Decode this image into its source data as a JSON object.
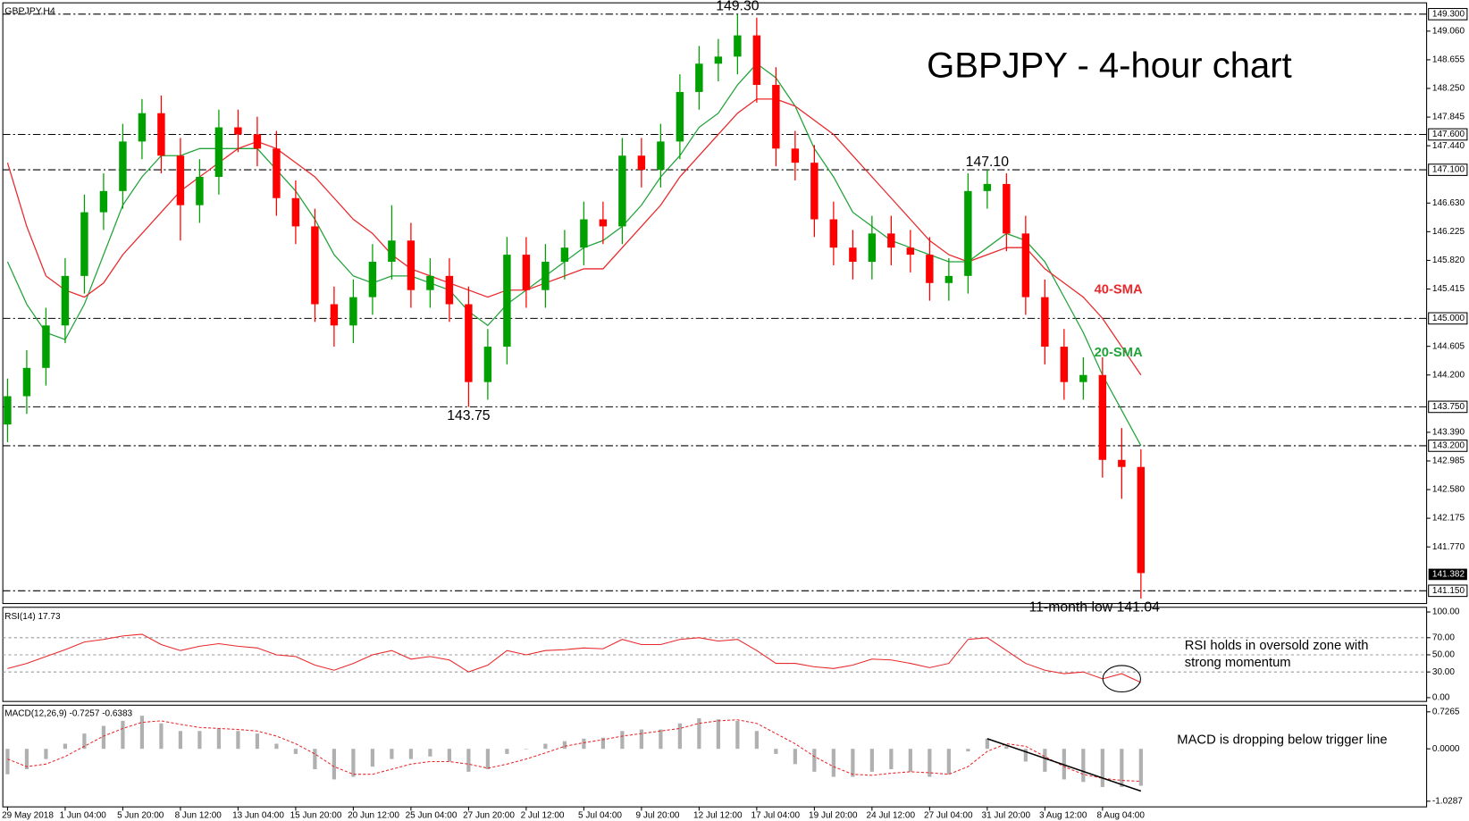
{
  "chart_data": [
    {
      "type": "candlestick",
      "title": "GBPJPY - 4-hour chart",
      "label": "GBPJPY,H4",
      "categories": [
        "29 May 2018",
        null,
        null,
        "1 Jun 04:00",
        null,
        null,
        "5 Jun 20:00",
        null,
        null,
        "8 Jun 12:00",
        null,
        null,
        "13 Jun 04:00",
        null,
        null,
        "15 Jun 20:00",
        null,
        null,
        "20 Jun 12:00",
        null,
        null,
        "25 Jun 04:00",
        null,
        null,
        "27 Jun 20:00",
        null,
        null,
        "2 Jul 12:00",
        null,
        null,
        "5 Jul 04:00",
        null,
        null,
        "9 Jul 20:00",
        null,
        null,
        "12 Jul 12:00",
        null,
        null,
        "17 Jul 04:00",
        null,
        null,
        "19 Jul 20:00",
        null,
        null,
        "24 Jul 12:00",
        null,
        null,
        "27 Jul 04:00",
        null,
        null,
        "31 Jul 20:00",
        null,
        null,
        "3 Aug 12:00",
        null,
        null,
        "8 Aug 04:00",
        null,
        null
      ],
      "open": [
        143.5,
        143.9,
        144.3,
        144.9,
        145.6,
        146.5,
        146.8,
        147.5,
        147.9,
        147.3,
        146.6,
        147.0,
        147.7,
        147.6,
        147.4,
        146.7,
        146.3,
        145.2,
        144.9,
        145.3,
        145.8,
        146.1,
        145.4,
        145.6,
        145.2,
        144.1,
        144.6,
        145.9,
        145.4,
        145.8,
        146.0,
        146.4,
        146.3,
        147.3,
        147.1,
        147.5,
        148.2,
        148.6,
        148.7,
        149.0,
        148.3,
        147.4,
        147.2,
        146.4,
        146.0,
        145.8,
        146.2,
        146.0,
        145.9,
        145.5,
        145.6,
        146.8,
        146.9,
        146.2,
        145.3,
        144.6,
        144.1,
        144.2,
        143.0,
        142.9
      ],
      "high": [
        144.15,
        144.55,
        145.15,
        145.85,
        146.75,
        147.05,
        147.75,
        148.1,
        148.15,
        147.55,
        147.25,
        147.95,
        147.95,
        147.85,
        147.65,
        146.95,
        146.55,
        145.45,
        145.55,
        146.05,
        146.6,
        146.35,
        145.85,
        145.85,
        145.45,
        144.85,
        146.15,
        146.15,
        146.05,
        146.25,
        146.65,
        146.65,
        147.55,
        147.55,
        147.75,
        148.45,
        148.85,
        148.95,
        149.3,
        149.25,
        148.55,
        147.65,
        147.45,
        146.65,
        146.25,
        146.45,
        146.45,
        146.25,
        146.15,
        145.85,
        147.05,
        147.1,
        147.05,
        146.45,
        145.55,
        144.85,
        144.45,
        144.45,
        143.45,
        143.15
      ],
      "low": [
        143.25,
        143.65,
        144.05,
        144.65,
        145.35,
        146.25,
        146.55,
        147.25,
        147.05,
        146.1,
        146.35,
        146.75,
        147.35,
        147.15,
        146.45,
        146.05,
        144.95,
        144.6,
        144.65,
        145.05,
        145.55,
        145.15,
        145.15,
        144.95,
        143.75,
        143.85,
        144.35,
        145.15,
        145.15,
        145.55,
        145.75,
        146.05,
        146.05,
        146.85,
        146.85,
        147.25,
        147.95,
        148.35,
        148.45,
        148.05,
        147.15,
        146.95,
        146.15,
        145.75,
        145.55,
        145.55,
        145.75,
        145.65,
        145.25,
        145.25,
        145.35,
        146.55,
        145.95,
        145.05,
        144.35,
        143.85,
        143.85,
        142.75,
        142.45,
        141.04
      ],
      "close": [
        143.9,
        144.3,
        144.9,
        145.6,
        146.5,
        146.8,
        147.5,
        147.9,
        147.3,
        146.6,
        147.0,
        147.7,
        147.6,
        147.4,
        146.7,
        146.3,
        145.2,
        144.9,
        145.3,
        145.8,
        146.1,
        145.4,
        145.6,
        145.2,
        144.1,
        144.6,
        145.9,
        145.4,
        145.8,
        146.0,
        146.4,
        146.3,
        147.3,
        147.1,
        147.5,
        148.2,
        148.6,
        148.7,
        149.0,
        148.3,
        147.4,
        147.2,
        146.4,
        146.0,
        145.8,
        146.2,
        146.0,
        145.9,
        145.5,
        145.6,
        146.8,
        146.9,
        146.2,
        145.3,
        144.6,
        144.1,
        144.2,
        143.0,
        142.9,
        141.4
      ],
      "up_color": "#00a000",
      "down_color": "#ff0000",
      "series": [
        {
          "name": "20-SMA",
          "color": "#22a33a",
          "values": [
            145.8,
            145.2,
            144.8,
            144.7,
            145.2,
            145.9,
            146.6,
            147.0,
            147.3,
            147.3,
            147.4,
            147.4,
            147.4,
            147.4,
            147.1,
            146.8,
            146.4,
            145.9,
            145.6,
            145.5,
            145.6,
            145.6,
            145.5,
            145.4,
            145.1,
            144.9,
            145.2,
            145.4,
            145.6,
            145.8,
            146.0,
            146.1,
            146.3,
            146.6,
            147.0,
            147.3,
            147.7,
            147.9,
            148.3,
            148.6,
            148.4,
            148.0,
            147.4,
            147.0,
            146.5,
            146.3,
            146.1,
            146.0,
            145.9,
            145.8,
            145.8,
            146.0,
            146.2,
            146.1,
            145.8,
            145.3,
            144.8,
            144.2,
            143.7,
            143.2
          ]
        },
        {
          "name": "40-SMA",
          "color": "#e8282b",
          "values": [
            147.2,
            146.3,
            145.6,
            145.4,
            145.3,
            145.5,
            145.9,
            146.2,
            146.5,
            146.8,
            147.0,
            147.2,
            147.4,
            147.5,
            147.4,
            147.2,
            147.0,
            146.7,
            146.4,
            146.2,
            145.9,
            145.7,
            145.6,
            145.5,
            145.4,
            145.3,
            145.4,
            145.4,
            145.5,
            145.6,
            145.7,
            145.7,
            146.0,
            146.3,
            146.6,
            147.0,
            147.3,
            147.6,
            147.9,
            148.1,
            148.1,
            148.0,
            147.8,
            147.6,
            147.3,
            147.0,
            146.7,
            146.4,
            146.1,
            145.9,
            145.8,
            145.9,
            146.0,
            146.0,
            145.7,
            145.5,
            145.3,
            145.0,
            144.6,
            144.2
          ]
        }
      ],
      "ylim": [
        140.97,
        149.46
      ],
      "yticks": [
        {
          "value": 149.06,
          "label": "149.060"
        },
        {
          "value": 148.655,
          "label": "148.655"
        },
        {
          "value": 148.25,
          "label": "148.250"
        },
        {
          "value": 147.845,
          "label": "147.845"
        },
        {
          "value": 147.44,
          "label": "147.440"
        },
        {
          "value": 146.63,
          "label": "146.630"
        },
        {
          "value": 146.225,
          "label": "146.225"
        },
        {
          "value": 145.82,
          "label": "145.820"
        },
        {
          "value": 145.415,
          "label": "145.415"
        },
        {
          "value": 144.605,
          "label": "144.605"
        },
        {
          "value": 144.2,
          "label": "144.200"
        },
        {
          "value": 143.39,
          "label": "143.390"
        },
        {
          "value": 142.985,
          "label": "142.985"
        },
        {
          "value": 142.58,
          "label": "142.580"
        },
        {
          "value": 142.175,
          "label": "142.175"
        },
        {
          "value": 141.77,
          "label": "141.770"
        }
      ],
      "levels": [
        {
          "value": 149.3,
          "label": "149.300"
        },
        {
          "value": 147.6,
          "label": "147.600"
        },
        {
          "value": 147.1,
          "label": "147.100"
        },
        {
          "value": 145.0,
          "label": "145.000"
        },
        {
          "value": 143.75,
          "label": "143.750"
        },
        {
          "value": 143.2,
          "label": "143.200"
        },
        {
          "value": 141.15,
          "label": "141.150"
        }
      ],
      "last_price": {
        "value": 141.382,
        "label": "141.382"
      },
      "annotations": [
        {
          "text": "149.30",
          "index": 38,
          "value": 149.3
        },
        {
          "text": "143.75",
          "index": 24,
          "value": 143.75
        },
        {
          "text": "147.10",
          "index": 51,
          "value": 147.1
        },
        {
          "text": "11-month low 141.04",
          "index": 59,
          "value": 141.04
        }
      ]
    },
    {
      "type": "line",
      "label": "RSI(14) 17.73",
      "series": [
        {
          "name": "RSI(14)",
          "color": "#e8282b",
          "values": [
            34,
            40,
            48,
            56,
            65,
            68,
            72,
            74,
            62,
            55,
            60,
            63,
            60,
            58,
            50,
            48,
            38,
            32,
            40,
            50,
            55,
            45,
            48,
            44,
            30,
            38,
            55,
            50,
            55,
            56,
            58,
            57,
            68,
            62,
            62,
            68,
            70,
            66,
            68,
            55,
            40,
            40,
            36,
            34,
            38,
            45,
            44,
            40,
            35,
            40,
            68,
            70,
            55,
            40,
            32,
            28,
            30,
            22,
            28,
            17.73
          ]
        }
      ],
      "ylim": [
        -4.4,
        105.5
      ],
      "yticks": [
        {
          "value": 100,
          "label": "100.00"
        },
        {
          "value": 70,
          "label": "70.00"
        },
        {
          "value": 50,
          "label": "50.00"
        },
        {
          "value": 30,
          "label": "30.00"
        },
        {
          "value": 0,
          "label": "0.00"
        }
      ],
      "annotation": [
        "RSI holds in oversold zone with",
        "strong momentum"
      ]
    },
    {
      "type": "macd",
      "label": "MACD(12,26,9) -0.7257 -0.6383",
      "series": [
        {
          "name": "MACD",
          "color": "#b0b0b0",
          "values": [
            -0.5,
            -0.4,
            -0.2,
            0.1,
            0.3,
            0.45,
            0.55,
            0.65,
            0.5,
            0.35,
            0.35,
            0.4,
            0.35,
            0.3,
            0.1,
            -0.1,
            -0.4,
            -0.6,
            -0.55,
            -0.35,
            -0.2,
            -0.2,
            -0.15,
            -0.25,
            -0.45,
            -0.4,
            -0.1,
            0.0,
            0.1,
            0.15,
            0.2,
            0.22,
            0.35,
            0.38,
            0.38,
            0.5,
            0.6,
            0.58,
            0.55,
            0.35,
            -0.1,
            -0.3,
            -0.45,
            -0.55,
            -0.55,
            -0.45,
            -0.4,
            -0.45,
            -0.55,
            -0.5,
            -0.05,
            0.2,
            0.05,
            -0.25,
            -0.45,
            -0.6,
            -0.65,
            -0.75,
            -0.75,
            -0.7257
          ]
        },
        {
          "name": "Signal",
          "color": "#e8282b",
          "values": [
            -0.2,
            -0.35,
            -0.3,
            -0.15,
            0.05,
            0.25,
            0.4,
            0.52,
            0.55,
            0.48,
            0.42,
            0.4,
            0.38,
            0.35,
            0.25,
            0.1,
            -0.1,
            -0.35,
            -0.5,
            -0.5,
            -0.4,
            -0.3,
            -0.25,
            -0.25,
            -0.3,
            -0.38,
            -0.3,
            -0.2,
            -0.08,
            0.05,
            0.12,
            0.18,
            0.25,
            0.3,
            0.35,
            0.4,
            0.5,
            0.55,
            0.57,
            0.5,
            0.3,
            0.1,
            -0.15,
            -0.35,
            -0.5,
            -0.52,
            -0.48,
            -0.45,
            -0.47,
            -0.5,
            -0.35,
            -0.05,
            0.1,
            0.05,
            -0.15,
            -0.35,
            -0.5,
            -0.58,
            -0.62,
            -0.6383
          ]
        }
      ],
      "trend_line": {
        "start": {
          "index": 51,
          "value": 0.2
        },
        "end": {
          "index": 59,
          "value": -0.83
        }
      },
      "ylim": [
        -1.14,
        0.857
      ],
      "yticks": [
        {
          "value": 0.7265,
          "label": "0.7265"
        },
        {
          "value": 0,
          "label": "0.0000"
        },
        {
          "value": -1.0287,
          "label": "-1.0287"
        }
      ],
      "annotation": "MACD is dropping below trigger line"
    }
  ]
}
